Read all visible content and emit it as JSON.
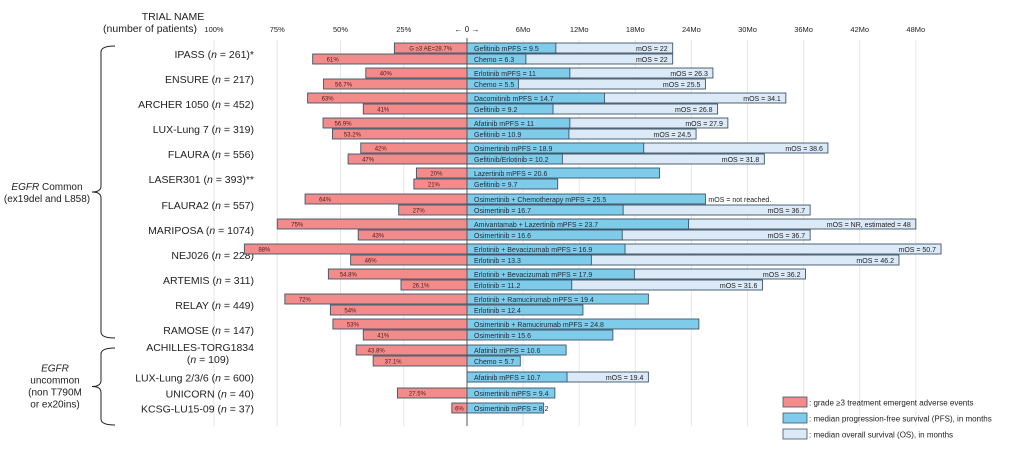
{
  "chart_data": {
    "type": "bar",
    "title": "",
    "header": {
      "line1": "TRIAL NAME",
      "line2": "(number of patients)"
    },
    "left_axis": {
      "label": "grade ≥3 treatment emergent adverse events (%)",
      "ticks": [
        "100%",
        "75%",
        "50%",
        "25%"
      ],
      "tick_values": [
        100,
        75,
        50,
        25
      ],
      "range": [
        0,
        100
      ]
    },
    "center_tick": "← 0 →",
    "right_axis": {
      "label": "months",
      "ticks": [
        "6Mo",
        "12Mo",
        "18Mo",
        "24Mo",
        "30Mo",
        "36Mo",
        "42Mo",
        "48Mo"
      ],
      "tick_values": [
        6,
        12,
        18,
        24,
        30,
        36,
        42,
        48
      ],
      "range": [
        0,
        50
      ]
    },
    "groups": [
      {
        "label_italic": "EGFR",
        "label_rest": " Common",
        "label_line2": "(ex19del and L858)",
        "label_line3": "",
        "label_line4": "",
        "trial_start": 0,
        "trial_end": 11
      },
      {
        "label_italic": "EGFR",
        "label_rest": "",
        "label_line2": "uncommon",
        "label_line3": "(non T790M",
        "label_line4": "or ex20ins)",
        "trial_start": 12,
        "trial_end": 15
      }
    ],
    "trials": [
      {
        "name": "IPASS",
        "n": "261",
        "suffix": "*",
        "rows": [
          {
            "ae": 28.7,
            "ae_label": "G ≥3 AE=28.7%",
            "pfs": 9.5,
            "pfs_label": "Gefitinib mPFS = 9.5",
            "os": 22,
            "os_label": "mOS = 22"
          },
          {
            "ae": 61,
            "ae_label": "61%",
            "pfs": 6.3,
            "pfs_label": "Chemo = 6.3",
            "os": 22,
            "os_label": "mOS = 22"
          }
        ]
      },
      {
        "name": "ENSURE",
        "n": "217",
        "suffix": "",
        "rows": [
          {
            "ae": 40,
            "ae_label": "40%",
            "pfs": 11,
            "pfs_label": "Erlotinib mPFS = 11",
            "os": 26.3,
            "os_label": "mOS = 26.3"
          },
          {
            "ae": 56.7,
            "ae_label": "56.7%",
            "pfs": 5.5,
            "pfs_label": "Chemo = 5.5",
            "os": 25.5,
            "os_label": "mOS = 25.5"
          }
        ]
      },
      {
        "name": "ARCHER 1050",
        "n": "452",
        "suffix": "",
        "rows": [
          {
            "ae": 63,
            "ae_label": "63%",
            "pfs": 14.7,
            "pfs_label": "Dacomitinib mPFS = 14.7",
            "os": 34.1,
            "os_label": "mOS = 34.1"
          },
          {
            "ae": 41,
            "ae_label": "41%",
            "pfs": 9.2,
            "pfs_label": "Gefitinib = 9.2",
            "os": 26.8,
            "os_label": "mOS = 26.8"
          }
        ]
      },
      {
        "name": "LUX-Lung 7",
        "n": "319",
        "suffix": "",
        "rows": [
          {
            "ae": 56.9,
            "ae_label": "56.9%",
            "pfs": 11,
            "pfs_label": "Afatinib mPFS = 11",
            "os": 27.9,
            "os_label": "mOS = 27.9"
          },
          {
            "ae": 53.2,
            "ae_label": "53.2%",
            "pfs": 10.9,
            "pfs_label": "Gefitinib = 10.9",
            "os": 24.5,
            "os_label": "mOS = 24.5"
          }
        ]
      },
      {
        "name": "FLAURA",
        "n": "556",
        "suffix": "",
        "rows": [
          {
            "ae": 42,
            "ae_label": "42%",
            "pfs": 18.9,
            "pfs_label": "Osimertinib mPFS = 18.9",
            "os": 38.6,
            "os_label": "mOS = 38.6"
          },
          {
            "ae": 47,
            "ae_label": "47%",
            "pfs": 10.2,
            "pfs_label": "Gefitinib/Erlotinib = 10.2",
            "os": 31.8,
            "os_label": "mOS = 31.8"
          }
        ]
      },
      {
        "name": "LASER301",
        "n": "393",
        "suffix": "**",
        "rows": [
          {
            "ae": 20,
            "ae_label": "20%",
            "pfs": 20.6,
            "pfs_label": "Lazertinib mPFS = 20.6",
            "os": null,
            "os_label": ""
          },
          {
            "ae": 21,
            "ae_label": "21%",
            "pfs": 9.7,
            "pfs_label": "Gefitinib = 9.7",
            "os": null,
            "os_label": ""
          }
        ]
      },
      {
        "name": "FLAURA2",
        "n": "557",
        "suffix": "",
        "rows": [
          {
            "ae": 64,
            "ae_label": "64%",
            "pfs": 25.5,
            "pfs_label": "Osimertinib + Chemotherapy mPFS = 25.5",
            "os": null,
            "os_label": "mOS = not reached.",
            "os_outside": true
          },
          {
            "ae": 27,
            "ae_label": "27%",
            "pfs": 16.7,
            "pfs_label": "Osimertinib = 16.7",
            "os": 36.7,
            "os_label": "mOS = 36.7"
          }
        ]
      },
      {
        "name": "MARIPOSA",
        "n": "1074",
        "suffix": "",
        "rows": [
          {
            "ae": 75,
            "ae_label": "75%",
            "pfs": 23.7,
            "pfs_label": "Amivantamab + Lazertinib mPFS = 23.7",
            "os": 48,
            "os_label": "mOS = NR, estimated = 48"
          },
          {
            "ae": 43,
            "ae_label": "43%",
            "pfs": 16.6,
            "pfs_label": "Osimertinib = 16.6",
            "os": 36.7,
            "os_label": "mOS = 36.7"
          }
        ]
      },
      {
        "name": "NEJ026",
        "n": "228",
        "suffix": "",
        "rows": [
          {
            "ae": 88,
            "ae_label": "88%",
            "pfs": 16.9,
            "pfs_label": "Erlotinib + Bevacizumab mPFS = 16.9",
            "os": 50.7,
            "os_label": "mOS = 50.7"
          },
          {
            "ae": 46,
            "ae_label": "46%",
            "pfs": 13.3,
            "pfs_label": "Erlotinib = 13.3",
            "os": 46.2,
            "os_label": "mOS = 46.2"
          }
        ]
      },
      {
        "name": "ARTEMIS",
        "n": "311",
        "suffix": "",
        "rows": [
          {
            "ae": 54.8,
            "ae_label": "54.8%",
            "pfs": 17.9,
            "pfs_label": "Erlotinib + Bevacizumab mPFS = 17.9",
            "os": 36.2,
            "os_label": "mOS = 36.2"
          },
          {
            "ae": 26.1,
            "ae_label": "26.1%",
            "pfs": 11.2,
            "pfs_label": "Erlotinib = 11.2",
            "os": 31.6,
            "os_label": "mOS = 31.6"
          }
        ]
      },
      {
        "name": "RELAY",
        "n": "449",
        "suffix": "",
        "rows": [
          {
            "ae": 72,
            "ae_label": "72%",
            "pfs": 19.4,
            "pfs_label": "Erlotinib + Ramucirumab mPFS = 19.4",
            "os": null,
            "os_label": ""
          },
          {
            "ae": 54,
            "ae_label": "54%",
            "pfs": 12.4,
            "pfs_label": "Erlotinib = 12.4",
            "os": null,
            "os_label": ""
          }
        ]
      },
      {
        "name": "RAMOSE",
        "n": "147",
        "suffix": "",
        "rows": [
          {
            "ae": 53,
            "ae_label": "53%",
            "pfs": 24.8,
            "pfs_label": "Osimertinib + Ramucirumab mPFS = 24.8",
            "os": null,
            "os_label": ""
          },
          {
            "ae": 41,
            "ae_label": "41%",
            "pfs": 15.6,
            "pfs_label": "Osimertinib = 15.6",
            "os": null,
            "os_label": ""
          }
        ]
      },
      {
        "name": "ACHILLES-TORG1834",
        "n": "109",
        "suffix": "",
        "two_line": true,
        "rows": [
          {
            "ae": 43.8,
            "ae_label": "43.8%",
            "pfs": 10.6,
            "pfs_label": "Afatinib mPFS = 10.6",
            "os": null,
            "os_label": ""
          },
          {
            "ae": 37.1,
            "ae_label": "37.1%",
            "pfs": 5.7,
            "pfs_label": "Chemo = 5.7",
            "os": null,
            "os_label": ""
          }
        ]
      },
      {
        "name": "LUX-Lung 2/3/6",
        "n": "600",
        "suffix": "",
        "rows": [
          {
            "ae": null,
            "ae_label": "",
            "pfs": 10.7,
            "pfs_label": "Afatinib mPFS = 10.7",
            "os": 19.4,
            "os_label": "mOS = 19.4"
          }
        ]
      },
      {
        "name": "UNICORN",
        "n": "40",
        "suffix": "",
        "rows": [
          {
            "ae": 27.5,
            "ae_label": "27.5%",
            "pfs": 9.4,
            "pfs_label": "Osimertinib mPFS = 9.4",
            "os": null,
            "os_label": ""
          }
        ]
      },
      {
        "name": "KCSG-LU15-09",
        "n": "37",
        "suffix": "",
        "rows": [
          {
            "ae": 6,
            "ae_label": "6%",
            "pfs": 8.2,
            "pfs_label": "Osimertinib mPFS = 8.2",
            "os": null,
            "os_label": ""
          }
        ]
      }
    ],
    "legend": {
      "placement": "bottom-right",
      "items": [
        {
          "key": "ae",
          "label": ": grade ≥3 treatment emergent adverse events",
          "color": "#f48b8b"
        },
        {
          "key": "pfs",
          "label": ": median progression-free survival (PFS), in months",
          "color": "#7ecbea"
        },
        {
          "key": "os",
          "label": ": median overall survival (OS), in months",
          "color": "#dce9f7"
        }
      ]
    },
    "colors": {
      "ae": "#f48b8b",
      "pfs": "#7ecbea",
      "os": "#dce9f7",
      "border": "#3d5468",
      "grid": "#e6e6e6"
    }
  }
}
